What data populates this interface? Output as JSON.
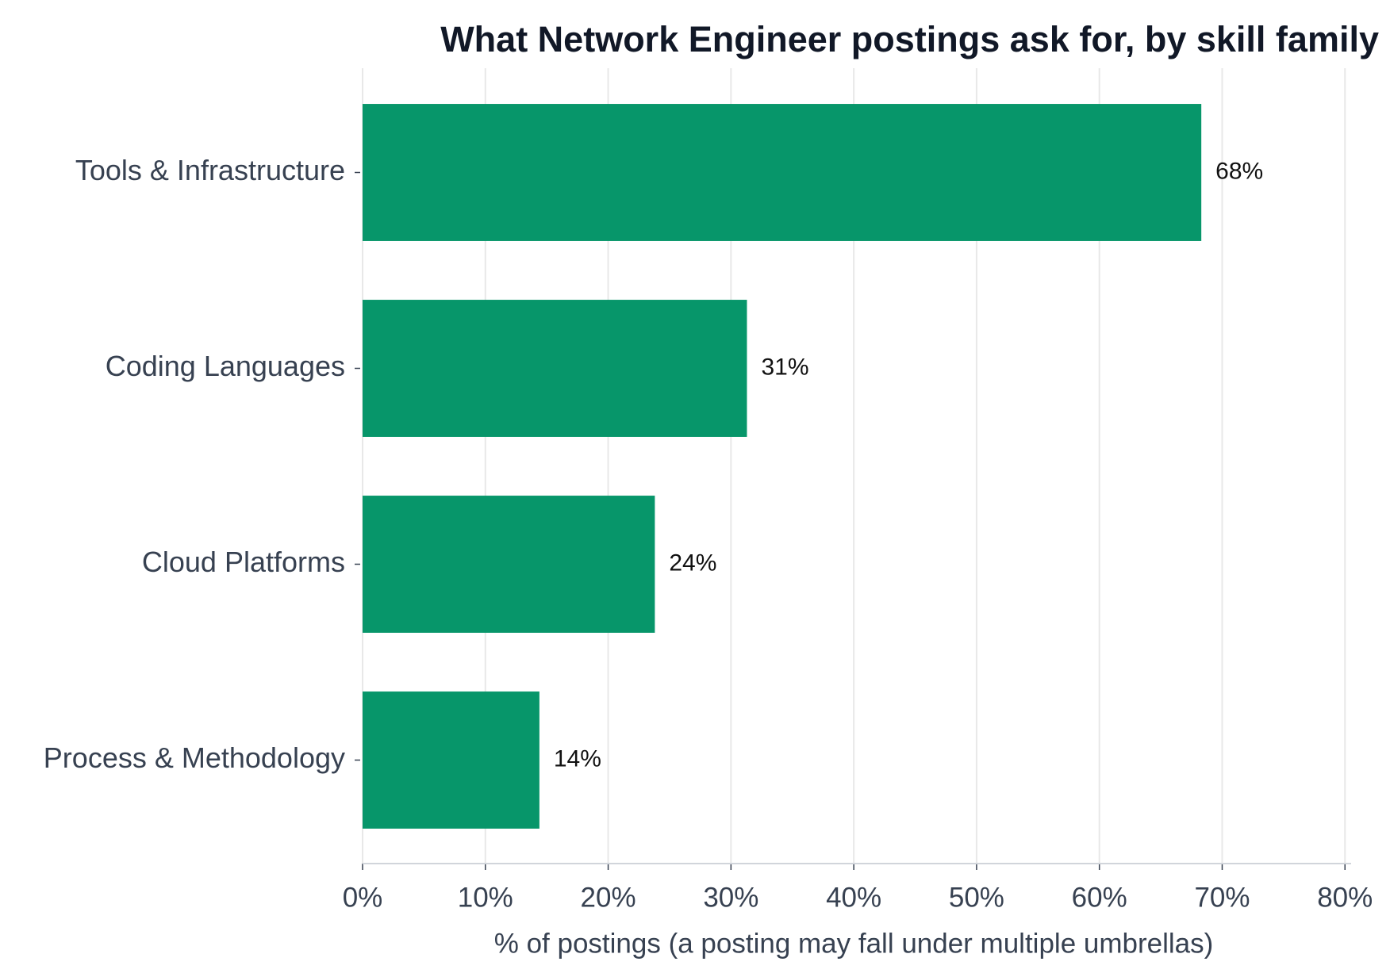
{
  "chart_data": {
    "type": "bar",
    "orientation": "horizontal",
    "title": "What Network Engineer postings ask for, by skill family",
    "xlabel": "% of postings (a posting may fall under multiple umbrellas)",
    "categories": [
      "Tools & Infrastructure",
      "Coding Languages",
      "Cloud Platforms",
      "Process & Methodology"
    ],
    "values": [
      68.3,
      31.3,
      23.8,
      14.4
    ],
    "value_labels": [
      "68%",
      "31%",
      "24%",
      "14%"
    ],
    "color": "#07966a",
    "xlim": [
      0,
      80.5
    ],
    "xticks": [
      {
        "value": 0,
        "label": "0%"
      },
      {
        "value": 10,
        "label": "10%"
      },
      {
        "value": 20,
        "label": "20%"
      },
      {
        "value": 30,
        "label": "30%"
      },
      {
        "value": 40,
        "label": "40%"
      },
      {
        "value": 50,
        "label": "50%"
      },
      {
        "value": 60,
        "label": "60%"
      },
      {
        "value": 70,
        "label": "70%"
      },
      {
        "value": 80,
        "label": "80%"
      }
    ],
    "grid": true
  }
}
